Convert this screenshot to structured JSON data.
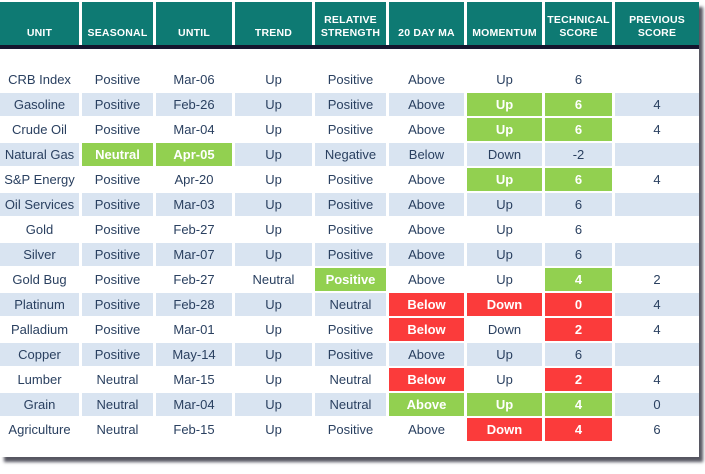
{
  "colors": {
    "header_bg": "#0e7a73",
    "divider": "#15152e",
    "row_stripe": "#d9e4f1",
    "text": "#2a4060",
    "highlight_green": "#92d050",
    "highlight_red": "#fb3b3b"
  },
  "chart_data": {
    "type": "table",
    "columns": [
      "UNIT",
      "SEASONAL",
      "UNTIL",
      "TREND",
      "RELATIVE STRENGTH",
      "20 DAY MA",
      "MOMENTUM",
      "TECHNICAL SCORE",
      "PREVIOUS SCORE"
    ],
    "column_keys": [
      "unit",
      "seasonal",
      "until",
      "trend",
      "relative-strength",
      "20-day-ma",
      "momentum",
      "technical-score",
      "previous-score"
    ],
    "highlight_legend": {
      "g": "green",
      "r": "red",
      "": "none"
    },
    "rows": [
      [
        [
          "CRB Index",
          ""
        ],
        [
          "Positive",
          ""
        ],
        [
          "Mar-06",
          ""
        ],
        [
          "Up",
          ""
        ],
        [
          "Positive",
          ""
        ],
        [
          "Above",
          ""
        ],
        [
          "Up",
          ""
        ],
        [
          "6",
          ""
        ],
        [
          "",
          ""
        ]
      ],
      [
        [
          "Gasoline",
          ""
        ],
        [
          "Positive",
          ""
        ],
        [
          "Feb-26",
          ""
        ],
        [
          "Up",
          ""
        ],
        [
          "Positive",
          ""
        ],
        [
          "Above",
          ""
        ],
        [
          "Up",
          "g"
        ],
        [
          "6",
          "g"
        ],
        [
          "4",
          ""
        ]
      ],
      [
        [
          "Crude Oil",
          ""
        ],
        [
          "Positive",
          ""
        ],
        [
          "Mar-04",
          ""
        ],
        [
          "Up",
          ""
        ],
        [
          "Positive",
          ""
        ],
        [
          "Above",
          ""
        ],
        [
          "Up",
          "g"
        ],
        [
          "6",
          "g"
        ],
        [
          "4",
          ""
        ]
      ],
      [
        [
          "Natural Gas",
          ""
        ],
        [
          "Neutral",
          "g"
        ],
        [
          "Apr-05",
          "g"
        ],
        [
          "Up",
          ""
        ],
        [
          "Negative",
          ""
        ],
        [
          "Below",
          ""
        ],
        [
          "Down",
          ""
        ],
        [
          "-2",
          ""
        ],
        [
          "",
          ""
        ]
      ],
      [
        [
          "S&P Energy",
          ""
        ],
        [
          "Positive",
          ""
        ],
        [
          "Apr-20",
          ""
        ],
        [
          "Up",
          ""
        ],
        [
          "Positive",
          ""
        ],
        [
          "Above",
          ""
        ],
        [
          "Up",
          "g"
        ],
        [
          "6",
          "g"
        ],
        [
          "4",
          ""
        ]
      ],
      [
        [
          "Oil Services",
          ""
        ],
        [
          "Positive",
          ""
        ],
        [
          "Mar-03",
          ""
        ],
        [
          "Up",
          ""
        ],
        [
          "Positive",
          ""
        ],
        [
          "Above",
          ""
        ],
        [
          "Up",
          ""
        ],
        [
          "6",
          ""
        ],
        [
          "",
          ""
        ]
      ],
      [
        [
          "Gold",
          ""
        ],
        [
          "Positive",
          ""
        ],
        [
          "Feb-27",
          ""
        ],
        [
          "Up",
          ""
        ],
        [
          "Positive",
          ""
        ],
        [
          "Above",
          ""
        ],
        [
          "Up",
          ""
        ],
        [
          "6",
          ""
        ],
        [
          "",
          ""
        ]
      ],
      [
        [
          "Silver",
          ""
        ],
        [
          "Positive",
          ""
        ],
        [
          "Mar-07",
          ""
        ],
        [
          "Up",
          ""
        ],
        [
          "Positive",
          ""
        ],
        [
          "Above",
          ""
        ],
        [
          "Up",
          ""
        ],
        [
          "6",
          ""
        ],
        [
          "",
          ""
        ]
      ],
      [
        [
          "Gold Bug",
          ""
        ],
        [
          "Positive",
          ""
        ],
        [
          "Feb-27",
          ""
        ],
        [
          "Neutral",
          ""
        ],
        [
          "Positive",
          "g"
        ],
        [
          "Above",
          ""
        ],
        [
          "Up",
          ""
        ],
        [
          "4",
          "g"
        ],
        [
          "2",
          ""
        ]
      ],
      [
        [
          "Platinum",
          ""
        ],
        [
          "Positive",
          ""
        ],
        [
          "Feb-28",
          ""
        ],
        [
          "Up",
          ""
        ],
        [
          "Neutral",
          ""
        ],
        [
          "Below",
          "r"
        ],
        [
          "Down",
          "r"
        ],
        [
          "0",
          "r"
        ],
        [
          "4",
          ""
        ]
      ],
      [
        [
          "Palladium",
          ""
        ],
        [
          "Positive",
          ""
        ],
        [
          "Mar-01",
          ""
        ],
        [
          "Up",
          ""
        ],
        [
          "Positive",
          ""
        ],
        [
          "Below",
          "r"
        ],
        [
          "Down",
          ""
        ],
        [
          "2",
          "r"
        ],
        [
          "4",
          ""
        ]
      ],
      [
        [
          "Copper",
          ""
        ],
        [
          "Positive",
          ""
        ],
        [
          "May-14",
          ""
        ],
        [
          "Up",
          ""
        ],
        [
          "Positive",
          ""
        ],
        [
          "Above",
          ""
        ],
        [
          "Up",
          ""
        ],
        [
          "6",
          ""
        ],
        [
          "",
          ""
        ]
      ],
      [
        [
          "Lumber",
          ""
        ],
        [
          "Neutral",
          ""
        ],
        [
          "Mar-15",
          ""
        ],
        [
          "Up",
          ""
        ],
        [
          "Neutral",
          ""
        ],
        [
          "Below",
          "r"
        ],
        [
          "Up",
          ""
        ],
        [
          "2",
          "r"
        ],
        [
          "4",
          ""
        ]
      ],
      [
        [
          "Grain",
          ""
        ],
        [
          "Neutral",
          ""
        ],
        [
          "Mar-04",
          ""
        ],
        [
          "Up",
          ""
        ],
        [
          "Neutral",
          ""
        ],
        [
          "Above",
          "g"
        ],
        [
          "Up",
          "g"
        ],
        [
          "4",
          "g"
        ],
        [
          "0",
          ""
        ]
      ],
      [
        [
          "Agriculture",
          ""
        ],
        [
          "Neutral",
          ""
        ],
        [
          "Feb-15",
          ""
        ],
        [
          "Up",
          ""
        ],
        [
          "Positive",
          ""
        ],
        [
          "Above",
          ""
        ],
        [
          "Down",
          "r"
        ],
        [
          "4",
          "r"
        ],
        [
          "6",
          ""
        ]
      ]
    ]
  }
}
